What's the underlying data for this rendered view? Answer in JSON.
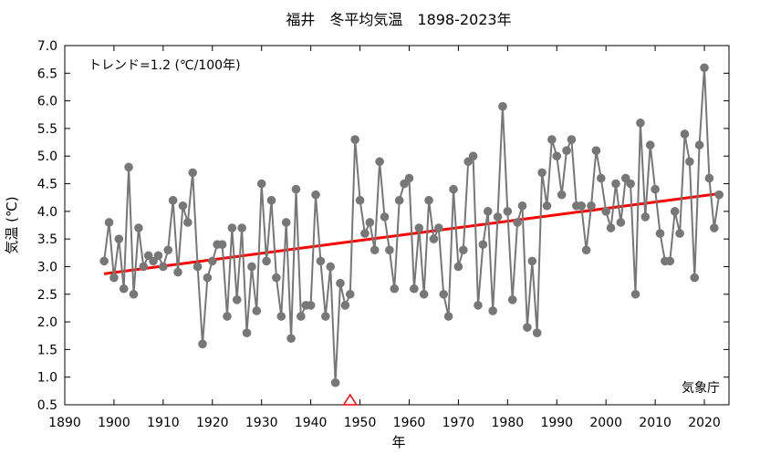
{
  "chart_data": {
    "type": "line",
    "title": "福井　冬平均気温　1898-2023年",
    "xlabel": "年",
    "ylabel": "気温 (℃)",
    "xlim": [
      1890,
      2025
    ],
    "ylim": [
      0.5,
      7.0
    ],
    "xticks": [
      1890,
      1900,
      1910,
      1920,
      1930,
      1940,
      1950,
      1960,
      1970,
      1980,
      1990,
      2000,
      2010,
      2020
    ],
    "yticks": [
      "0.5",
      "1.0",
      "1.5",
      "2.0",
      "2.5",
      "3.0",
      "3.5",
      "4.0",
      "4.5",
      "5.0",
      "5.5",
      "6.0",
      "6.5",
      "7.0"
    ],
    "grid": false,
    "trend_label": "トレンド=1.2 (℃/100年)",
    "source": "気象庁",
    "colors": {
      "series": "#777777",
      "trend": "#ff0000",
      "marker_event": "#ff0000"
    },
    "series": [
      {
        "x": [
          1898,
          1899,
          1900,
          1901,
          1902,
          1903,
          1904,
          1905,
          1906,
          1907,
          1908,
          1909,
          1910,
          1911,
          1912,
          1913,
          1914,
          1915,
          1916,
          1917,
          1918,
          1919,
          1920,
          1921,
          1922,
          1923,
          1924,
          1925,
          1926,
          1927,
          1928,
          1929,
          1930,
          1931,
          1932,
          1933,
          1934,
          1935,
          1936,
          1937,
          1938,
          1939,
          1940,
          1941,
          1942,
          1943,
          1944,
          1945,
          1946,
          1947,
          1948,
          1949,
          1950,
          1951,
          1952,
          1953,
          1954,
          1955,
          1956,
          1957,
          1958,
          1959,
          1960,
          1961,
          1962,
          1963,
          1964,
          1965,
          1966,
          1967,
          1968,
          1969,
          1970,
          1971,
          1972,
          1973,
          1974,
          1975,
          1976,
          1977,
          1978,
          1979,
          1980,
          1981,
          1982,
          1983,
          1984,
          1985,
          1986,
          1987,
          1988,
          1989,
          1990,
          1991,
          1992,
          1993,
          1994,
          1995,
          1996,
          1997,
          1998,
          1999,
          2000,
          2001,
          2002,
          2003,
          2004,
          2005,
          2006,
          2007,
          2008,
          2009,
          2010,
          2011,
          2012,
          2013,
          2014,
          2015,
          2016,
          2017,
          2018,
          2019,
          2020,
          2021,
          2022,
          2023
        ],
        "y": [
          3.1,
          3.8,
          2.8,
          3.5,
          2.6,
          4.8,
          2.5,
          3.7,
          3.0,
          3.2,
          3.1,
          3.2,
          3.0,
          3.3,
          4.2,
          2.9,
          4.1,
          3.8,
          4.7,
          3.0,
          1.6,
          2.8,
          3.1,
          3.4,
          3.4,
          2.1,
          3.7,
          2.4,
          3.7,
          1.8,
          3.0,
          2.2,
          4.5,
          3.1,
          4.2,
          2.8,
          2.1,
          3.8,
          1.7,
          4.4,
          2.1,
          2.3,
          2.3,
          4.3,
          3.1,
          2.1,
          3.0,
          0.9,
          2.7,
          2.3,
          2.5,
          5.3,
          4.2,
          3.6,
          3.8,
          3.3,
          4.9,
          3.9,
          3.3,
          2.6,
          4.2,
          4.5,
          4.6,
          2.6,
          3.7,
          2.5,
          4.2,
          3.5,
          3.7,
          2.5,
          2.1,
          4.4,
          3.0,
          3.3,
          4.9,
          5.0,
          2.3,
          3.4,
          4.0,
          2.2,
          3.9,
          5.9,
          4.0,
          2.4,
          3.8,
          4.1,
          1.9,
          3.1,
          1.8,
          4.7,
          4.1,
          5.3,
          5.0,
          4.3,
          5.1,
          5.3,
          4.1,
          4.1,
          3.3,
          4.1,
          5.1,
          4.6,
          4.0,
          3.7,
          4.5,
          3.8,
          4.6,
          4.5,
          2.5,
          5.6,
          3.9,
          5.2,
          4.4,
          3.6,
          3.1,
          3.1,
          4.0,
          3.6,
          5.4,
          4.9,
          2.8,
          5.2,
          6.6,
          4.6,
          3.7,
          4.3
        ]
      }
    ],
    "trend_line": {
      "x": [
        1898,
        2023
      ],
      "y": [
        2.87,
        4.32
      ]
    },
    "event_marker": {
      "x": 1948,
      "y": 0.5,
      "shape": "triangle"
    }
  }
}
